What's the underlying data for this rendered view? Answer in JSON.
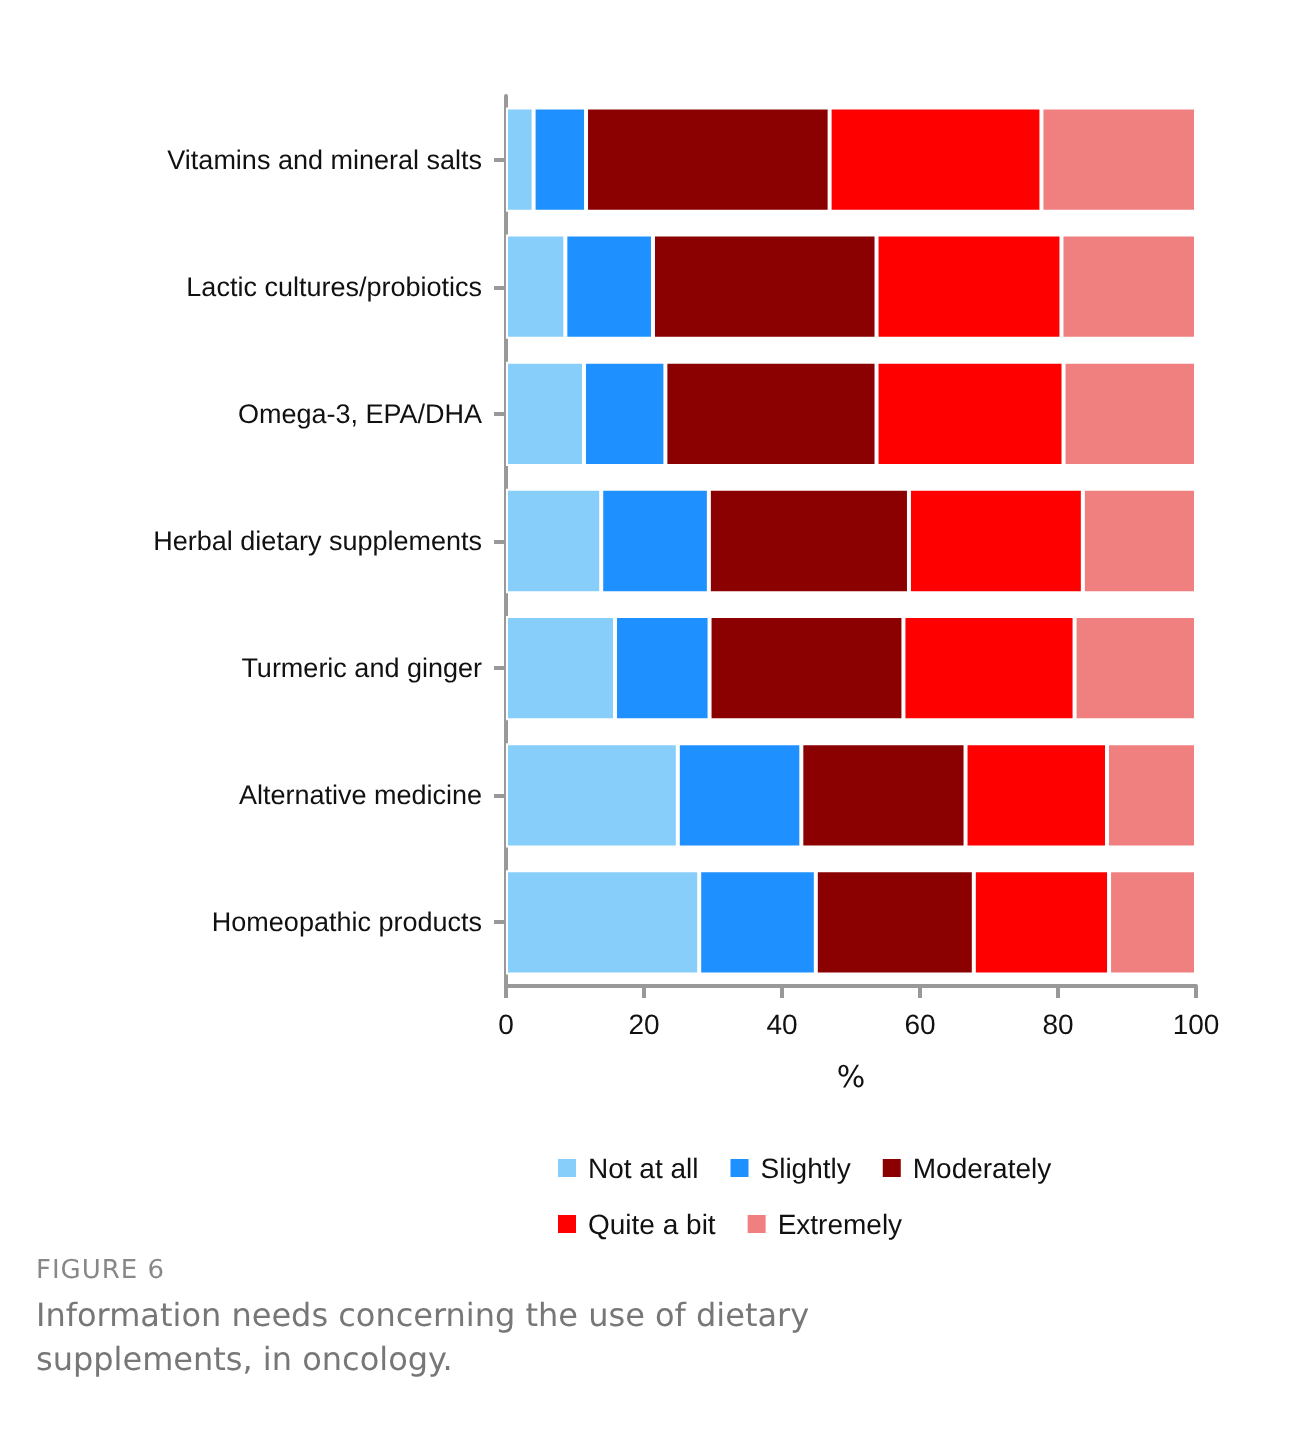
{
  "chart_data": {
    "type": "bar",
    "orientation": "horizontal",
    "stacked": true,
    "categories": [
      "Vitamins and mineral salts",
      "Lactic cultures/probiotics",
      "Omega-3, EPA/DHA",
      "Herbal dietary supplements",
      "Turmeric and ginger",
      "Alternative medicine",
      "Homeopathic products"
    ],
    "series": [
      {
        "name": "Not at all",
        "color": "#87cefa",
        "values": [
          4,
          8.6,
          11.3,
          13.8,
          15.8,
          24.9,
          28
        ]
      },
      {
        "name": "Slightly",
        "color": "#1e90ff",
        "values": [
          7.6,
          12.7,
          11.8,
          15.6,
          13.7,
          17.9,
          16.9
        ]
      },
      {
        "name": "Moderately",
        "color": "#8b0000",
        "values": [
          35.3,
          32.4,
          30.6,
          29,
          28.1,
          23.8,
          22.9
        ]
      },
      {
        "name": "Quite a bit",
        "color": "#ff0000",
        "values": [
          30.7,
          26.8,
          27.1,
          25.2,
          24.8,
          20.5,
          19.6
        ]
      },
      {
        "name": "Extremely",
        "color": "#f08080",
        "values": [
          22.4,
          19.5,
          19.2,
          16.4,
          17.6,
          12.9,
          12.6
        ]
      }
    ],
    "xlabel": "%",
    "xlim": [
      0,
      100
    ],
    "xticks": [
      0,
      20,
      40,
      60,
      80,
      100
    ],
    "grid": false,
    "legend": "bottom",
    "annotations": [
      "FIGURE 6",
      "Information needs concerning the use of dietary supplements, in oncology."
    ]
  }
}
